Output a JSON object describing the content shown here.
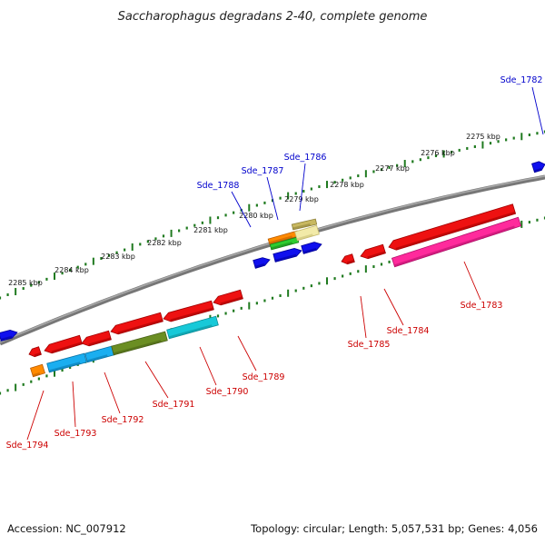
{
  "title": "Saccharophagus degradans 2-40, complete genome",
  "footer": {
    "accession": "Accession: NC_007912",
    "summary": "Topology: circular; Length: 5,057,531 bp; Genes: 4,056"
  },
  "colors": {
    "backbone": "#777777",
    "tick": "#1f7a1f",
    "upper_label": "#0000cc",
    "lower_label": "#cc0000"
  },
  "kbp_ticks": [
    "2275 kbp",
    "2276 kbp",
    "2277 kbp",
    "2278 kbp",
    "2279 kbp",
    "2280 kbp",
    "2281 kbp",
    "2282 kbp",
    "2283 kbp",
    "2284 kbp",
    "2285 kbp"
  ],
  "upper_genes": [
    "Sde_1782",
    "Sde_1786",
    "Sde_1787",
    "Sde_1788"
  ],
  "lower_genes": [
    "Sde_1783",
    "Sde_1784",
    "Sde_1785",
    "Sde_1789",
    "Sde_1790",
    "Sde_1791",
    "Sde_1792",
    "Sde_1793",
    "Sde_1794"
  ],
  "feature_colors": [
    "blue",
    "red",
    "orange",
    "green",
    "khaki",
    "light-yellow",
    "pink",
    "cyan",
    "light-blue",
    "olive"
  ]
}
